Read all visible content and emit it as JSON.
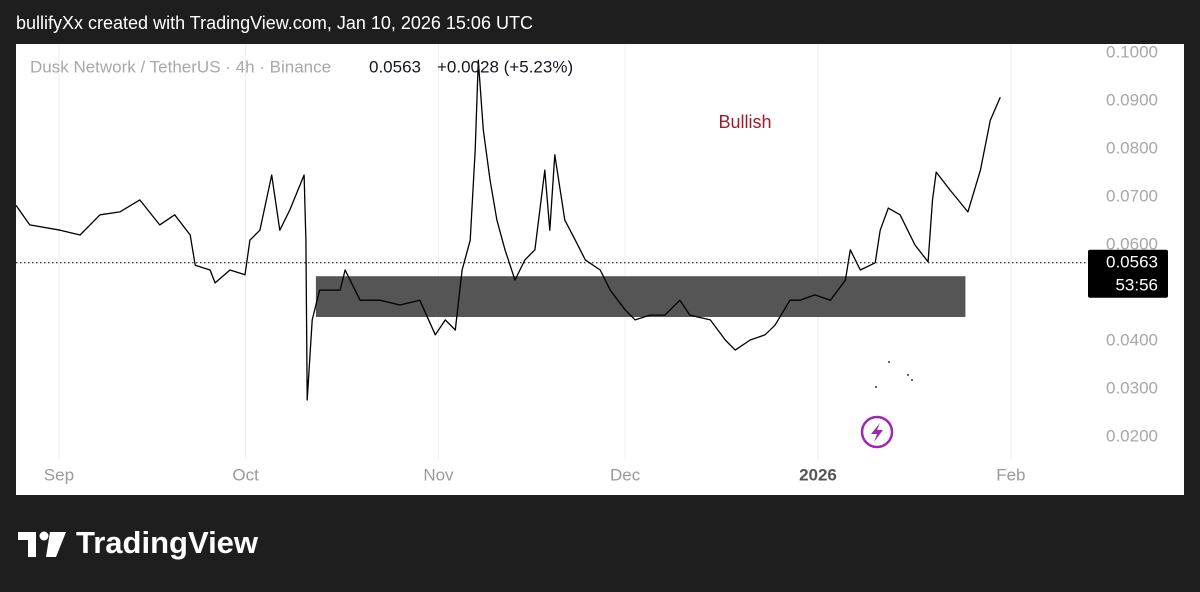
{
  "credit": "bullifyXx created with TradingView.com, Jan 10, 2026 15:06 UTC",
  "brand": "TradingView",
  "chart_data": {
    "type": "line",
    "symbol": "Dusk Network / TetherUS · 4h · Binance",
    "last_price": 0.0563,
    "change": "+0.0028 (+5.23%)",
    "countdown": "53:56",
    "annotation": "Bullish",
    "xlim": [
      -6.9,
      165.4
    ],
    "xticks": [
      {
        "value": 0,
        "label": "Sep"
      },
      {
        "value": 30,
        "label": "Oct"
      },
      {
        "value": 61,
        "label": "Nov"
      },
      {
        "value": 91,
        "label": "Dec"
      },
      {
        "value": 122,
        "label": "2026",
        "bold": true
      },
      {
        "value": 153,
        "label": "Feb"
      }
    ],
    "ylim": [
      0.0079,
      0.1019
    ],
    "yticks": [
      {
        "value": 0.1,
        "label": "0.1000"
      },
      {
        "value": 0.09,
        "label": "0.0900"
      },
      {
        "value": 0.08,
        "label": "0.0800"
      },
      {
        "value": 0.07,
        "label": "0.0700"
      },
      {
        "value": 0.06,
        "label": "0.0600"
      },
      {
        "value": 0.05,
        "label": "0.0500"
      },
      {
        "value": 0.04,
        "label": "0.0400"
      },
      {
        "value": 0.03,
        "label": "0.0300"
      },
      {
        "value": 0.02,
        "label": "0.0200"
      }
    ],
    "grid": true,
    "series": [
      {
        "color": "#000000",
        "x": [
          -6.9,
          -4.7,
          0.2,
          3.4,
          6.6,
          9.8,
          13.0,
          16.2,
          18.6,
          21.1,
          21.9,
          24.3,
          25.1,
          27.5,
          29.9,
          30.7,
          32.3,
          34.2,
          35.5,
          37.1,
          39.4,
          39.7,
          39.9,
          40.7,
          41.9,
          45.2,
          46.0,
          48.4,
          51.6,
          54.8,
          58.0,
          60.5,
          62.1,
          63.7,
          64.8,
          66.1,
          66.9,
          67.4,
          68.2,
          69.3,
          70.4,
          71.7,
          73.3,
          74.9,
          76.5,
          78.1,
          78.9,
          79.7,
          81.3,
          83.0,
          84.6,
          87.0,
          88.6,
          91.0,
          92.6,
          95.0,
          97.4,
          99.8,
          101.4,
          104.7,
          107.1,
          108.7,
          111.1,
          113.5,
          115.1,
          117.5,
          119.1,
          121.5,
          124.0,
          126.4,
          127.2,
          128.8,
          131.2
        ],
        "values": [
          0.0683,
          0.0642,
          0.0631,
          0.0621,
          0.0663,
          0.0669,
          0.0694,
          0.0642,
          0.0663,
          0.0621,
          0.0558,
          0.0548,
          0.0521,
          0.0548,
          0.0538,
          0.061,
          0.0631,
          0.0746,
          0.0631,
          0.0673,
          0.0746,
          0.061,
          0.0277,
          0.0444,
          0.0506,
          0.0506,
          0.0548,
          0.0485,
          0.0485,
          0.0475,
          0.0485,
          0.0413,
          0.0444,
          0.0423,
          0.0548,
          0.061,
          0.0798,
          0.0985,
          0.084,
          0.0735,
          0.0652,
          0.059,
          0.0527,
          0.0569,
          0.059,
          0.0756,
          0.0631,
          0.0788,
          0.0652,
          0.061,
          0.0569,
          0.0548,
          0.0506,
          0.0465,
          0.0444,
          0.0454,
          0.0454,
          0.0485,
          0.0454,
          0.0444,
          0.0402,
          0.0381,
          0.0402,
          0.0413,
          0.0433,
          0.0485,
          0.0485,
          0.0496,
          0.0485,
          0.0527,
          0.059,
          0.0548,
          0.0563
        ]
      },
      {
        "color": "#000000",
        "x": [
          131.2,
          132,
          133.3,
          135.2,
          137.6,
          139.7,
          140.4,
          141,
          143.2,
          146.1,
          148.1,
          149.7,
          151.3
        ],
        "values": [
          0.0563,
          0.0631,
          0.0677,
          0.0663,
          0.06,
          0.0565,
          0.0694,
          0.0752,
          0.0715,
          0.0669,
          0.0756,
          0.086,
          0.0908
        ]
      }
    ],
    "zone": {
      "x": [
        41.3,
        145.7
      ],
      "y": [
        0.045,
        0.0535
      ],
      "color": "#555555"
    }
  }
}
